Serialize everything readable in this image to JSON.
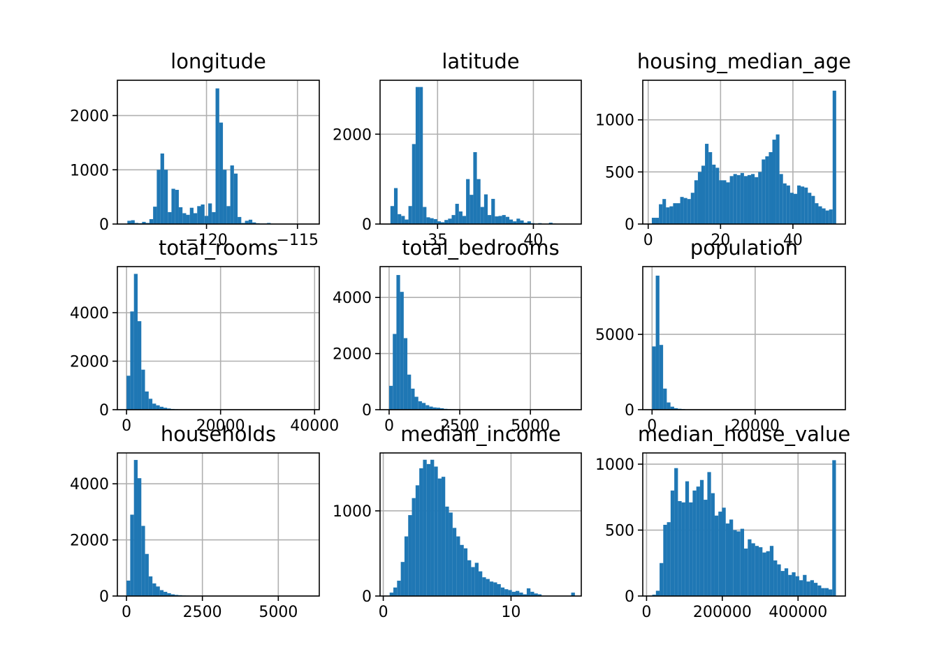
{
  "figure": {
    "bar_color": "#1f77b4",
    "grid_color": "#b0b0b0",
    "background": "#ffffff"
  },
  "chart_data": [
    {
      "type": "bar",
      "title": "longitude",
      "bins": 50,
      "xlim": [
        -124.9,
        -113.8
      ],
      "ylim": [
        0,
        2650
      ],
      "x_start": -124.35,
      "bin_width": 0.202,
      "xticks": [
        -120,
        -115
      ],
      "xtick_labels": [
        "−120",
        "−115"
      ],
      "yticks": [
        0,
        1000,
        2000
      ],
      "ytick_labels": [
        "0",
        "1000",
        "2000"
      ],
      "values": [
        60,
        70,
        20,
        15,
        40,
        20,
        90,
        320,
        1000,
        1300,
        1000,
        220,
        650,
        630,
        310,
        200,
        170,
        300,
        200,
        330,
        360,
        150,
        380,
        220,
        2500,
        1870,
        1000,
        330,
        1080,
        930,
        130,
        20,
        60,
        80,
        30,
        15,
        10,
        10,
        20,
        0,
        0,
        5,
        0,
        0,
        0,
        0,
        0,
        0,
        0,
        0
      ]
    },
    {
      "type": "bar",
      "title": "latitude",
      "bins": 50,
      "xlim": [
        32.0,
        42.5
      ],
      "ylim": [
        0,
        3200
      ],
      "x_start": 32.54,
      "bin_width": 0.188,
      "xticks": [
        35,
        40
      ],
      "xtick_labels": [
        "35",
        "40"
      ],
      "yticks": [
        0,
        2000
      ],
      "ytick_labels": [
        "0",
        "2000"
      ],
      "values": [
        400,
        800,
        220,
        180,
        100,
        400,
        1780,
        3050,
        3050,
        380,
        150,
        130,
        110,
        60,
        40,
        90,
        120,
        200,
        450,
        280,
        180,
        1000,
        650,
        1600,
        1000,
        380,
        660,
        200,
        560,
        170,
        180,
        200,
        160,
        100,
        60,
        120,
        80,
        30,
        60,
        20,
        0,
        20,
        0,
        0,
        30,
        10,
        0,
        0,
        0,
        0
      ]
    },
    {
      "type": "bar",
      "title": "housing_median_age",
      "bins": 52,
      "xlim": [
        -1.5,
        54.5
      ],
      "ylim": [
        0,
        1380
      ],
      "x_start": 1,
      "bin_width": 0.98,
      "xticks": [
        0,
        20,
        40
      ],
      "xtick_labels": [
        "0",
        "20",
        "40"
      ],
      "yticks": [
        0,
        500,
        1000
      ],
      "ytick_labels": [
        "0",
        "500",
        "1000"
      ],
      "values": [
        60,
        60,
        190,
        240,
        160,
        170,
        200,
        200,
        260,
        250,
        240,
        300,
        420,
        500,
        560,
        770,
        690,
        570,
        540,
        420,
        420,
        400,
        460,
        480,
        470,
        490,
        460,
        470,
        480,
        450,
        500,
        620,
        650,
        690,
        810,
        860,
        480,
        390,
        370,
        300,
        290,
        370,
        360,
        350,
        300,
        270,
        200,
        170,
        150,
        130,
        140,
        1280
      ]
    },
    {
      "type": "bar",
      "title": "total_rooms",
      "bins": 50,
      "xlim": [
        -1950,
        41000
      ],
      "ylim": [
        0,
        5900
      ],
      "x_start": 2,
      "bin_width": 785,
      "xticks": [
        0,
        20000,
        40000
      ],
      "xtick_labels": [
        "0",
        "20000",
        "40000"
      ],
      "yticks": [
        0,
        2000,
        4000
      ],
      "ytick_labels": [
        "0",
        "2000",
        "4000"
      ],
      "values": [
        1400,
        4050,
        5600,
        3650,
        1650,
        750,
        450,
        250,
        180,
        120,
        80,
        50,
        30,
        20,
        15,
        10,
        8,
        6,
        5,
        4,
        3,
        2,
        2,
        1,
        1,
        1,
        1,
        0,
        0,
        0,
        0,
        0,
        0,
        0,
        0,
        0,
        0,
        0,
        0,
        0,
        0,
        0,
        0,
        0,
        0,
        0,
        0,
        0,
        0,
        0
      ]
    },
    {
      "type": "bar",
      "title": "total_bedrooms",
      "bins": 50,
      "xlim": [
        -320,
        6800
      ],
      "ylim": [
        0,
        5100
      ],
      "x_start": 1,
      "bin_width": 129,
      "xticks": [
        0,
        2500,
        5000
      ],
      "xtick_labels": [
        "0",
        "2500",
        "5000"
      ],
      "yticks": [
        0,
        2000,
        4000
      ],
      "ytick_labels": [
        "0",
        "2000",
        "4000"
      ],
      "values": [
        850,
        2700,
        4800,
        4200,
        2550,
        1250,
        750,
        460,
        300,
        240,
        160,
        110,
        80,
        70,
        50,
        30,
        20,
        15,
        10,
        8,
        6,
        5,
        4,
        3,
        2,
        2,
        1,
        1,
        1,
        0,
        0,
        0,
        0,
        0,
        0,
        0,
        0,
        0,
        0,
        0,
        0,
        0,
        0,
        0,
        0,
        0,
        0,
        0,
        0,
        0
      ]
    },
    {
      "type": "bar",
      "title": "population",
      "bins": 50,
      "xlim": [
        -1800,
        37500
      ],
      "ylim": [
        0,
        9500
      ],
      "x_start": 3,
      "bin_width": 714,
      "xticks": [
        0,
        20000
      ],
      "xtick_labels": [
        "0",
        "20000"
      ],
      "yticks": [
        0,
        5000
      ],
      "ytick_labels": [
        "0",
        "5000"
      ],
      "values": [
        4200,
        8900,
        4300,
        1400,
        480,
        200,
        100,
        60,
        40,
        20,
        10,
        8,
        5,
        3,
        2,
        2,
        1,
        1,
        0,
        0,
        0,
        0,
        0,
        0,
        0,
        0,
        0,
        0,
        0,
        0,
        0,
        0,
        0,
        0,
        0,
        0,
        0,
        0,
        0,
        0,
        0,
        0,
        0,
        0,
        0,
        0,
        0,
        0,
        0,
        0
      ]
    },
    {
      "type": "bar",
      "title": "households",
      "bins": 50,
      "xlim": [
        -300,
        6350
      ],
      "ylim": [
        0,
        5100
      ],
      "x_start": 1,
      "bin_width": 122,
      "xticks": [
        0,
        2500,
        5000
      ],
      "xtick_labels": [
        "0",
        "2500",
        "5000"
      ],
      "yticks": [
        0,
        2000,
        4000
      ],
      "ytick_labels": [
        "0",
        "2000",
        "4000"
      ],
      "values": [
        550,
        2900,
        4850,
        4200,
        2500,
        1500,
        700,
        450,
        340,
        210,
        150,
        100,
        60,
        40,
        30,
        20,
        15,
        10,
        5,
        4,
        3,
        2,
        2,
        1,
        1,
        1,
        0,
        0,
        0,
        0,
        0,
        0,
        0,
        0,
        0,
        0,
        0,
        0,
        0,
        0,
        0,
        0,
        0,
        0,
        0,
        0,
        0,
        0,
        0,
        0
      ]
    },
    {
      "type": "bar",
      "title": "median_income",
      "bins": 50,
      "xlim": [
        -0.25,
        15.5
      ],
      "ylim": [
        0,
        1680
      ],
      "x_start": 0.5,
      "bin_width": 0.29,
      "xticks": [
        0,
        10
      ],
      "xtick_labels": [
        "0",
        "10"
      ],
      "yticks": [
        0,
        1000
      ],
      "ytick_labels": [
        "0",
        "1000"
      ],
      "values": [
        40,
        100,
        180,
        400,
        700,
        950,
        1150,
        1300,
        1500,
        1600,
        1550,
        1600,
        1520,
        1380,
        1400,
        1050,
        980,
        800,
        700,
        600,
        560,
        420,
        340,
        390,
        290,
        220,
        200,
        170,
        160,
        140,
        100,
        80,
        70,
        50,
        60,
        40,
        20,
        90,
        50,
        30,
        20,
        0,
        0,
        0,
        0,
        0,
        0,
        0,
        0,
        40
      ]
    },
    {
      "type": "bar",
      "title": "median_house_value",
      "bins": 50,
      "xlim": [
        -10000,
        525000
      ],
      "ylim": [
        0,
        1085
      ],
      "x_start": 15000,
      "bin_width": 9702,
      "xticks": [
        0,
        200000,
        400000
      ],
      "xtick_labels": [
        "0",
        "200000",
        "400000"
      ],
      "yticks": [
        0,
        500,
        1000
      ],
      "ytick_labels": [
        "0",
        "500",
        "1000"
      ],
      "values": [
        10,
        40,
        250,
        540,
        560,
        800,
        970,
        720,
        710,
        870,
        710,
        800,
        830,
        880,
        730,
        940,
        780,
        610,
        640,
        670,
        550,
        580,
        500,
        490,
        510,
        360,
        430,
        400,
        380,
        370,
        330,
        340,
        380,
        270,
        240,
        190,
        210,
        160,
        180,
        150,
        120,
        160,
        110,
        120,
        100,
        80,
        60,
        60,
        50,
        1030
      ]
    }
  ]
}
